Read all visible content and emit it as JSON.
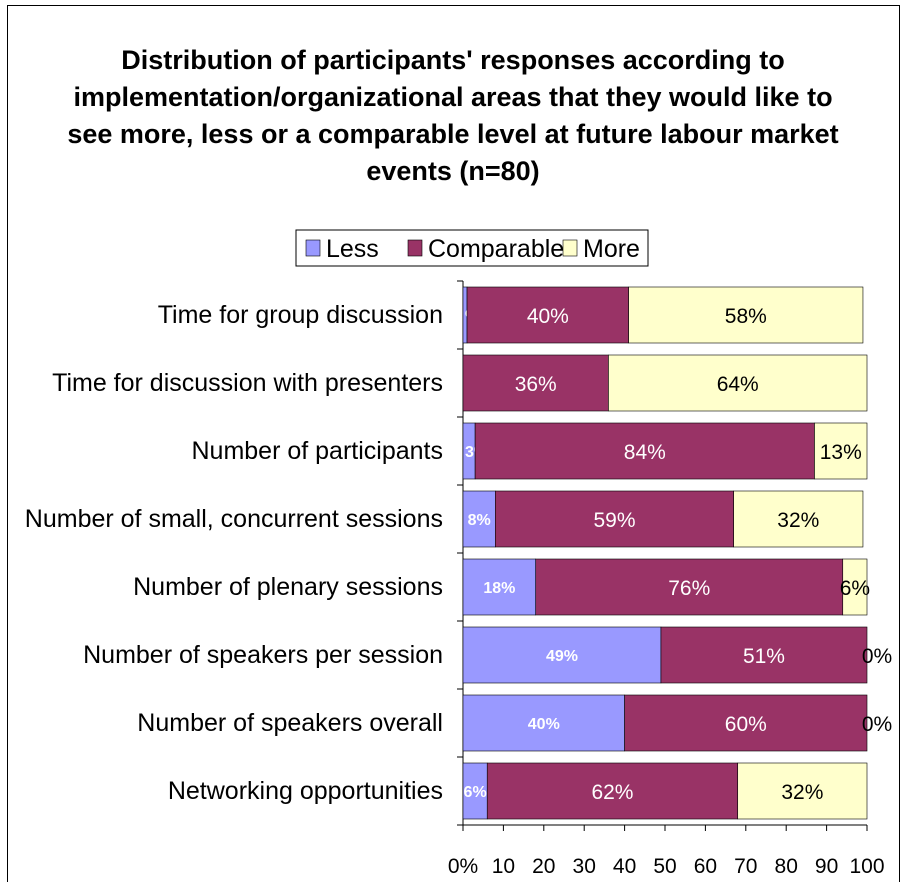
{
  "chart_data": {
    "type": "bar",
    "orientation": "horizontal",
    "stacked": true,
    "title_lines": [
      "Distribution of participants' responses according to",
      "implementation/organizational areas that they would like to",
      "see more, less or a comparable level at future labour market",
      "events (n=80)"
    ],
    "categories": [
      "Time for group discussion",
      "Time for discussion with presenters",
      "Number of participants",
      "Number of small, concurrent sessions",
      "Number of plenary sessions",
      "Number of speakers per session",
      "Number of speakers overall ",
      "Networking opportunities"
    ],
    "series": [
      {
        "name": "Less",
        "color": "#9999ff",
        "values": [
          1,
          0,
          3,
          8,
          18,
          49,
          40,
          6
        ],
        "labels": [
          "%",
          "%",
          "3%",
          "8%",
          "18%",
          "49%",
          "40%",
          "6%"
        ]
      },
      {
        "name": "Comparable",
        "color": "#993366",
        "values": [
          40,
          36,
          84,
          59,
          76,
          51,
          60,
          62
        ],
        "labels": [
          "40%",
          "36%",
          "84%",
          "59%",
          "76%",
          "51%",
          "60%",
          "62%"
        ]
      },
      {
        "name": "More",
        "color": "#ffffcc",
        "values": [
          58,
          64,
          13,
          32,
          6,
          0,
          0,
          32
        ],
        "labels": [
          "58%",
          "64%",
          "13%",
          "32%",
          "6%",
          "0%",
          "0%",
          "32%"
        ]
      }
    ],
    "x_ticks": [
      "0%",
      "10",
      "20",
      "30",
      "40",
      "50",
      "60",
      "70",
      "80",
      "90",
      "100"
    ],
    "xlim": [
      0,
      100
    ],
    "legend": {
      "position": "top",
      "entries": [
        "Less",
        "Comparable",
        "More"
      ]
    },
    "grid": false
  }
}
